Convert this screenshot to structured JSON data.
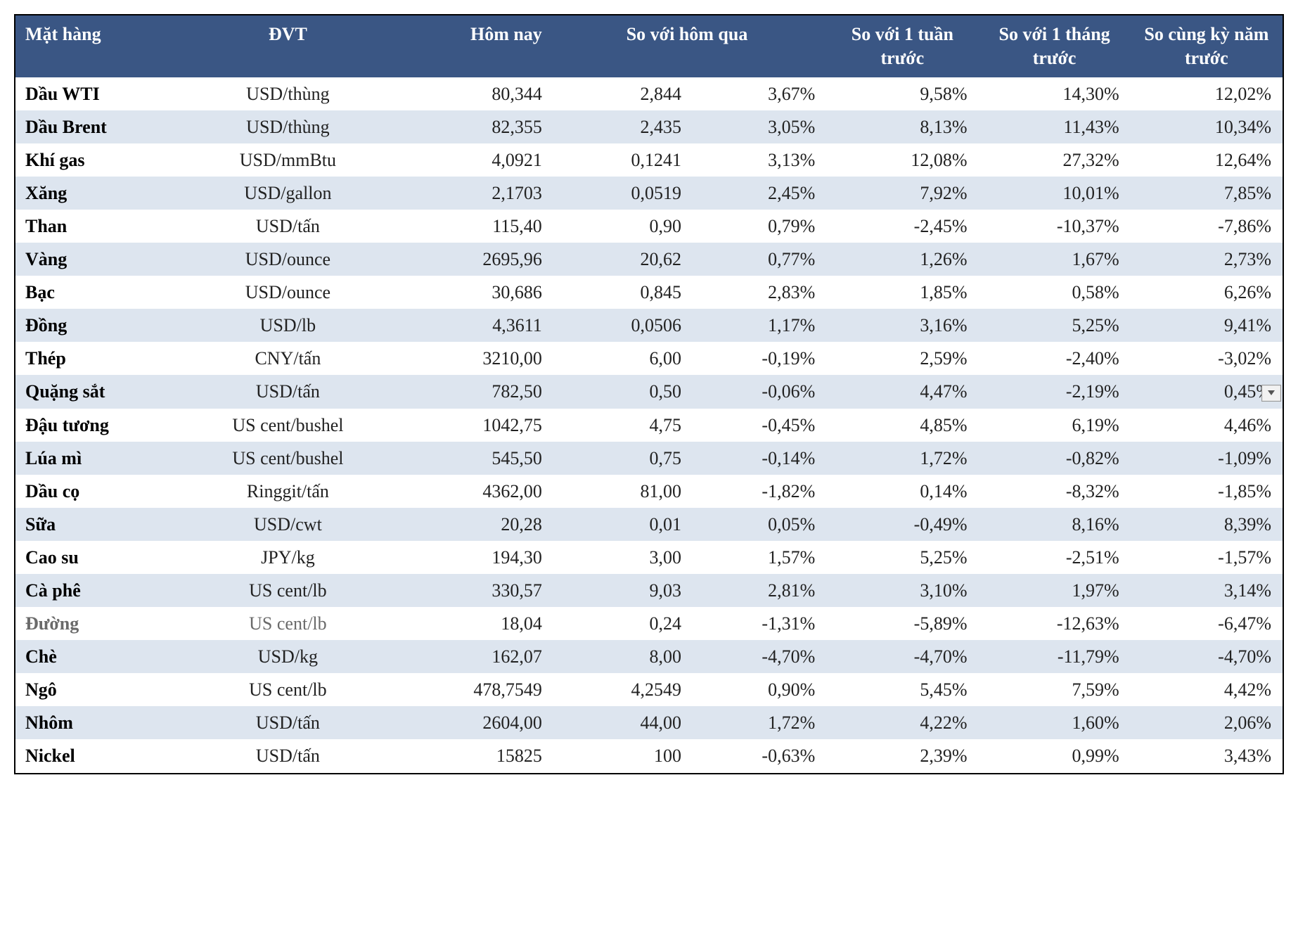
{
  "style": {
    "header_bg": "#3a5684",
    "header_fg": "#ffffff",
    "row_odd_bg": "#ffffff",
    "row_even_bg": "#dde5ef",
    "border_color": "#000000",
    "font_family": "Times New Roman",
    "header_fontsize_pt": 18,
    "body_fontsize_pt": 18,
    "muted_text_color": "#6a6a6a"
  },
  "columns": {
    "name": {
      "label": "Mặt hàng",
      "align": "left",
      "width_pct": 14
    },
    "unit": {
      "label": "ĐVT",
      "align": "center",
      "width_pct": 15
    },
    "today": {
      "label": "Hôm nay",
      "align": "right",
      "width_pct": 13
    },
    "diff": {
      "label": "So với hôm qua",
      "align": "right",
      "width_pct": 11,
      "pair_with_pct": true
    },
    "pct": {
      "label": "",
      "align": "right",
      "width_pct": 11
    },
    "week": {
      "label": "So với 1 tuần trước",
      "align": "right",
      "width_pct": 12
    },
    "month": {
      "label": "So với 1 tháng trước",
      "align": "right",
      "width_pct": 12
    },
    "year": {
      "label": "So cùng kỳ năm trước",
      "align": "right",
      "width_pct": 12
    }
  },
  "rows": [
    {
      "name": "Dầu WTI",
      "unit": "USD/thùng",
      "today": "80,344",
      "diff": "2,844",
      "pct": "3,67%",
      "week": "9,58%",
      "month": "14,30%",
      "year": "12,02%"
    },
    {
      "name": "Dầu Brent",
      "unit": "USD/thùng",
      "today": "82,355",
      "diff": "2,435",
      "pct": "3,05%",
      "week": "8,13%",
      "month": "11,43%",
      "year": "10,34%"
    },
    {
      "name": "Khí gas",
      "unit": "USD/mmBtu",
      "today": "4,0921",
      "diff": "0,1241",
      "pct": "3,13%",
      "week": "12,08%",
      "month": "27,32%",
      "year": "12,64%"
    },
    {
      "name": "Xăng",
      "unit": "USD/gallon",
      "today": "2,1703",
      "diff": "0,0519",
      "pct": "2,45%",
      "week": "7,92%",
      "month": "10,01%",
      "year": "7,85%"
    },
    {
      "name": "Than",
      "unit": "USD/tấn",
      "today": "115,40",
      "diff": "0,90",
      "pct": "0,79%",
      "week": "-2,45%",
      "month": "-10,37%",
      "year": "-7,86%"
    },
    {
      "name": "Vàng",
      "unit": "USD/ounce",
      "today": "2695,96",
      "diff": "20,62",
      "pct": "0,77%",
      "week": "1,26%",
      "month": "1,67%",
      "year": "2,73%"
    },
    {
      "name": "Bạc",
      "unit": "USD/ounce",
      "today": "30,686",
      "diff": "0,845",
      "pct": "2,83%",
      "week": "1,85%",
      "month": "0,58%",
      "year": "6,26%"
    },
    {
      "name": "Đồng",
      "unit": "USD/lb",
      "today": "4,3611",
      "diff": "0,0506",
      "pct": "1,17%",
      "week": "3,16%",
      "month": "5,25%",
      "year": "9,41%"
    },
    {
      "name": "Thép",
      "unit": "CNY/tấn",
      "today": "3210,00",
      "diff": "6,00",
      "pct": "-0,19%",
      "week": "2,59%",
      "month": "-2,40%",
      "year": "-3,02%"
    },
    {
      "name": "Quặng sắt",
      "unit": "USD/tấn",
      "today": "782,50",
      "diff": "0,50",
      "pct": "-0,06%",
      "week": "4,47%",
      "month": "-2,19%",
      "year": "0,45%",
      "has_widget": true
    },
    {
      "name": "Đậu tương",
      "unit": "US cent/bushel",
      "today": "1042,75",
      "diff": "4,75",
      "pct": "-0,45%",
      "week": "4,85%",
      "month": "6,19%",
      "year": "4,46%"
    },
    {
      "name": "Lúa mì",
      "unit": "US cent/bushel",
      "today": "545,50",
      "diff": "0,75",
      "pct": "-0,14%",
      "week": "1,72%",
      "month": "-0,82%",
      "year": "-1,09%"
    },
    {
      "name": "Dầu cọ",
      "unit": "Ringgit/tấn",
      "today": "4362,00",
      "diff": "81,00",
      "pct": "-1,82%",
      "week": "0,14%",
      "month": "-8,32%",
      "year": "-1,85%"
    },
    {
      "name": "Sữa",
      "unit": "USD/cwt",
      "today": "20,28",
      "diff": "0,01",
      "pct": "0,05%",
      "week": "-0,49%",
      "month": "8,16%",
      "year": "8,39%"
    },
    {
      "name": "Cao su",
      "unit": "JPY/kg",
      "today": "194,30",
      "diff": "3,00",
      "pct": "1,57%",
      "week": "5,25%",
      "month": "-2,51%",
      "year": "-1,57%"
    },
    {
      "name": "Cà phê",
      "unit": "US cent/lb",
      "today": "330,57",
      "diff": "9,03",
      "pct": "2,81%",
      "week": "3,10%",
      "month": "1,97%",
      "year": "3,14%"
    },
    {
      "name": "Đường",
      "unit": "US cent/lb",
      "today": "18,04",
      "diff": "0,24",
      "pct": "-1,31%",
      "week": "-5,89%",
      "month": "-12,63%",
      "year": "-6,47%",
      "muted": true
    },
    {
      "name": "Chè",
      "unit": "USD/kg",
      "today": "162,07",
      "diff": "8,00",
      "pct": "-4,70%",
      "week": "-4,70%",
      "month": "-11,79%",
      "year": "-4,70%"
    },
    {
      "name": "Ngô",
      "unit": "US cent/lb",
      "today": "478,7549",
      "diff": "4,2549",
      "pct": "0,90%",
      "week": "5,45%",
      "month": "7,59%",
      "year": "4,42%"
    },
    {
      "name": "Nhôm",
      "unit": "USD/tấn",
      "today": "2604,00",
      "diff": "44,00",
      "pct": "1,72%",
      "week": "4,22%",
      "month": "1,60%",
      "year": "2,06%"
    },
    {
      "name": "Nickel",
      "unit": "USD/tấn",
      "today": "15825",
      "diff": "100",
      "pct": "-0,63%",
      "week": "2,39%",
      "month": "0,99%",
      "year": "3,43%"
    }
  ]
}
